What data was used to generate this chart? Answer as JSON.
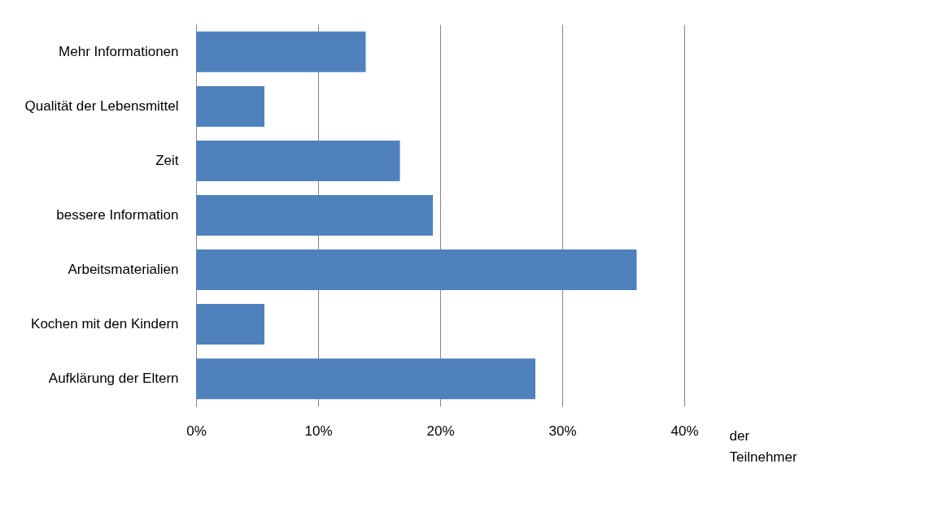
{
  "chart_data": {
    "type": "bar",
    "orientation": "horizontal",
    "xlabel": "der Teilnehmer",
    "categories": [
      "Mehr Informationen",
      "Qualität der Lebensmittel",
      "Zeit",
      "bessere Information",
      "Arbeitsmaterialien",
      "Kochen mit den Kindern",
      "Aufklärung der Eltern"
    ],
    "values": [
      13.9,
      5.6,
      16.7,
      19.4,
      36.1,
      5.6,
      27.8
    ],
    "color": "#4f81bd",
    "xlim": [
      0,
      40
    ],
    "xticks": [
      {
        "value": 0,
        "label": "0%"
      },
      {
        "value": 10,
        "label": "10%"
      },
      {
        "value": 20,
        "label": "20%"
      },
      {
        "value": 30,
        "label": "30%"
      },
      {
        "value": 40,
        "label": "40%"
      }
    ],
    "grid": "x"
  }
}
